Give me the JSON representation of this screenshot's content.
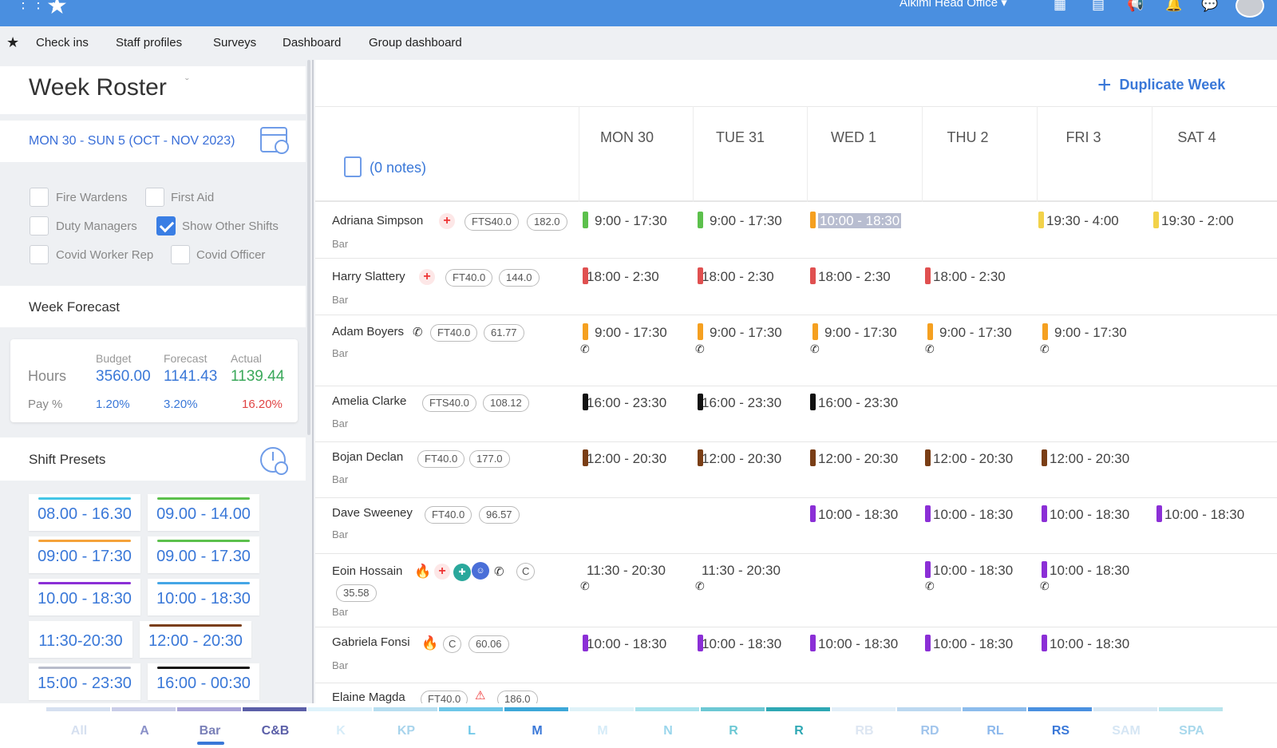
{
  "topbar": {
    "office": "Alkimi Head Office ▾"
  },
  "nav": {
    "items": [
      "Check ins",
      "Staff profiles",
      "Surveys",
      "Dashboard",
      "Group dashboard"
    ]
  },
  "left": {
    "title": "Week Roster",
    "date_range": "MON 30 - SUN 5 (OCT - NOV 2023)",
    "filters": [
      {
        "label": "Fire Wardens",
        "checked": false
      },
      {
        "label": "First Aid",
        "checked": false
      },
      {
        "label": "Duty Managers",
        "checked": false
      },
      {
        "label": "Show Other Shifts",
        "checked": true
      },
      {
        "label": "Covid Worker Rep",
        "checked": false
      },
      {
        "label": "Covid Officer",
        "checked": false
      }
    ],
    "forecast": {
      "title": "Week Forecast",
      "headers": [
        "Budget",
        "Forecast",
        "Actual"
      ],
      "hours_label": "Hours",
      "hours": [
        "3560.00",
        "1141.43",
        "1139.44"
      ],
      "pay_label": "Pay %",
      "pay": [
        "1.20%",
        "3.20%",
        "16.20%"
      ],
      "colors": {
        "blue": "#3a78d8",
        "green": "#3aa85a",
        "red": "#e04444"
      }
    },
    "presets": {
      "title": "Shift Presets",
      "items": [
        {
          "label": "08.00 - 16.30",
          "color": "#44c6e6"
        },
        {
          "label": "09.00 - 14.00",
          "color": "#5cc04c"
        },
        {
          "label": "09:00 - 17:30",
          "color": "#f5a23a"
        },
        {
          "label": "09.00 - 17.30",
          "color": "#5cc04c"
        },
        {
          "label": "10.00 - 18:30",
          "color": "#8b2fd6"
        },
        {
          "label": "10:00 - 18:30",
          "color": "#44a6e6"
        },
        {
          "label": "11:30-20:30",
          "color": ""
        },
        {
          "label": "12:00 - 20:30",
          "color": "#7a3e16"
        },
        {
          "label": "15:00 - 23:30",
          "color": "#b8bccb"
        },
        {
          "label": "16:00 - 00:30",
          "color": "#111111"
        }
      ]
    }
  },
  "main": {
    "duplicate_label": "Duplicate Week",
    "notes_label": "(0 notes)",
    "days": [
      "MON 30",
      "TUE 31",
      "WED 1",
      "THU 2",
      "FRI 3",
      "SAT 4"
    ],
    "employees": [
      {
        "name": "Adriana Simpson",
        "dept": "Bar",
        "pills": [
          "FTS40.0",
          "182.0"
        ],
        "shifts": [
          {
            "text": "9:00 - 17:30",
            "color": "#5cc04c"
          },
          {
            "text": "9:00 - 17:30",
            "color": "#5cc04c"
          },
          {
            "text": "10:00 - 18:30",
            "color": "#f5a020"
          },
          {
            "text": "",
            "color": ""
          },
          {
            "text": "19:30 -   4:00",
            "color": "#f2d24a"
          },
          {
            "text": "19:30 -   2:00",
            "color": "#f2d24a"
          }
        ]
      },
      {
        "name": "Harry Slattery",
        "dept": "Bar",
        "pills": [
          "FT40.0",
          "144.0"
        ],
        "shifts": [
          {
            "text": "18:00 -   2:30",
            "color": "#e05050"
          },
          {
            "text": "18:00 -   2:30",
            "color": "#e05050"
          },
          {
            "text": "18:00 -   2:30",
            "color": "#e05050"
          },
          {
            "text": "18:00 -   2:30",
            "color": "#e05050"
          }
        ]
      },
      {
        "name": "Adam Boyers",
        "dept": "Bar",
        "pills": [
          "FT40.0",
          "61.77"
        ],
        "shifts": [
          {
            "text": "9:00 - 17:30",
            "color": "#f5a020"
          },
          {
            "text": "9:00 - 17:30",
            "color": "#f5a020"
          },
          {
            "text": "9:00 - 17:30",
            "color": "#f5a020"
          },
          {
            "text": "9:00 - 17:30",
            "color": "#f5a020"
          },
          {
            "text": "9:00 - 17:30",
            "color": "#f5a020"
          }
        ]
      },
      {
        "name": "Amelia Clarke",
        "dept": "Bar",
        "pills": [
          "FTS40.0",
          "108.12"
        ],
        "shifts": [
          {
            "text": "16:00 - 23:30",
            "color": "#111111"
          },
          {
            "text": "16:00 - 23:30",
            "color": "#111111"
          },
          {
            "text": "16:00 - 23:30",
            "color": "#111111"
          }
        ]
      },
      {
        "name": "Bojan Declan",
        "dept": "Bar",
        "pills": [
          "FT40.0",
          "177.0"
        ],
        "shifts": [
          {
            "text": "12:00 - 20:30",
            "color": "#7a3e16"
          },
          {
            "text": "12:00 - 20:30",
            "color": "#7a3e16"
          },
          {
            "text": "12:00 - 20:30",
            "color": "#7a3e16"
          },
          {
            "text": "12:00 - 20:30",
            "color": "#7a3e16"
          },
          {
            "text": "12:00 - 20:30",
            "color": "#7a3e16"
          }
        ]
      },
      {
        "name": "Dave Sweeney",
        "dept": "Bar",
        "pills": [
          "FT40.0",
          "96.57"
        ],
        "shifts": [
          {
            "text": "",
            "color": ""
          },
          {
            "text": "",
            "color": ""
          },
          {
            "text": "10:00 - 18:30",
            "color": "#8b2fd6"
          },
          {
            "text": "10:00 - 18:30",
            "color": "#8b2fd6"
          },
          {
            "text": "10:00 - 18:30",
            "color": "#8b2fd6"
          },
          {
            "text": "10:00 - 18:30",
            "color": "#8b2fd6"
          }
        ]
      },
      {
        "name": "Eoin Hossain",
        "dept": "Bar",
        "pills": [
          "C",
          "35.58"
        ],
        "shifts": [
          {
            "text": "11:30 - 20:30",
            "color": ""
          },
          {
            "text": "11:30 - 20:30",
            "color": ""
          },
          {
            "text": "",
            "color": ""
          },
          {
            "text": "10:00 - 18:30",
            "color": "#8b2fd6"
          },
          {
            "text": "10:00 - 18:30",
            "color": "#8b2fd6"
          }
        ]
      },
      {
        "name": "Gabriela Fonsi",
        "dept": "Bar",
        "pills": [
          "C",
          "60.06"
        ],
        "shifts": [
          {
            "text": "10:00 - 18:30",
            "color": "#8b2fd6"
          },
          {
            "text": "10:00 - 18:30",
            "color": "#8b2fd6"
          },
          {
            "text": "10:00 - 18:30",
            "color": "#8b2fd6"
          },
          {
            "text": "10:00 - 18:30",
            "color": "#8b2fd6"
          },
          {
            "text": "10:00 - 18:30",
            "color": "#8b2fd6"
          }
        ]
      },
      {
        "name": "Elaine Magda",
        "dept": "",
        "pills": [
          "FT40.0",
          "186.0"
        ],
        "shifts": []
      }
    ]
  },
  "bottom_tabs": [
    {
      "label": "All",
      "color": "#d6e0f0",
      "text_color": "#d6e0f0"
    },
    {
      "label": "A",
      "color": "#c9cde8",
      "text_color": "#8a90c8"
    },
    {
      "label": "Bar",
      "color": "#a9a4d8",
      "text_color": "#7a80b8"
    },
    {
      "label": "C&B",
      "color": "#5b5fa8",
      "text_color": "#5b5fa8"
    },
    {
      "label": "K",
      "color": "#dff3fb",
      "text_color": "#d6ecf8"
    },
    {
      "label": "KP",
      "color": "#b7def0",
      "text_color": "#a8d4ec"
    },
    {
      "label": "L",
      "color": "#6ec7e8",
      "text_color": "#6ec7e8"
    },
    {
      "label": "M",
      "color": "#3da8d8",
      "text_color": "#3a78d8"
    },
    {
      "label": "M",
      "color": "#dff2f8",
      "text_color": "#d6ecf8"
    },
    {
      "label": "N",
      "color": "#a8e2ec",
      "text_color": "#9ad6ec"
    },
    {
      "label": "R",
      "color": "#6cc8d4",
      "text_color": "#6cc8d4"
    },
    {
      "label": "R",
      "color": "#2ea8b4",
      "text_color": "#2ea8b4"
    },
    {
      "label": "RB",
      "color": "#e2eef8",
      "text_color": "#dde6f2"
    },
    {
      "label": "RD",
      "color": "#bcd8f0",
      "text_color": "#a0c4ec"
    },
    {
      "label": "RL",
      "color": "#8cbcec",
      "text_color": "#8cb8ec"
    },
    {
      "label": "RS",
      "color": "#4a90e0",
      "text_color": "#3a78d8"
    },
    {
      "label": "SAM",
      "color": "#d8e8f4",
      "text_color": "#d6e6f4"
    },
    {
      "label": "SPA",
      "color": "#b8e4ec",
      "text_color": "#a8d8ec"
    }
  ]
}
